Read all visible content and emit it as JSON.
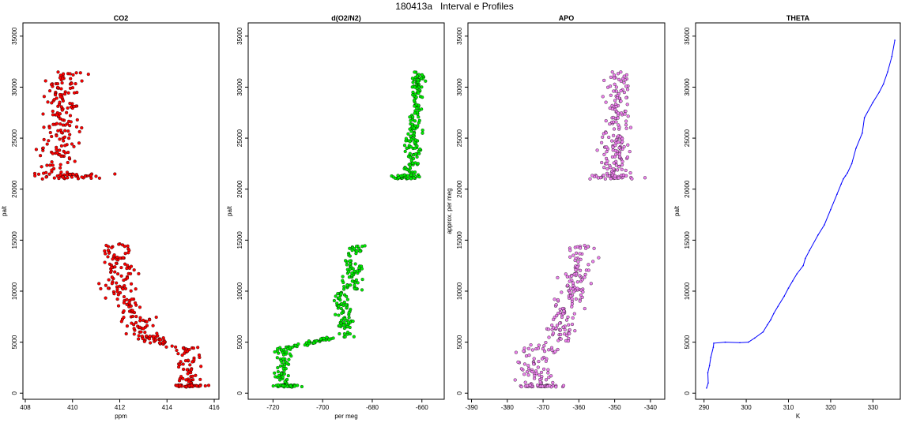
{
  "title": "180413a   Interval e Profiles",
  "chart_data": [
    {
      "type": "scatter",
      "title": "CO2",
      "xlabel": "ppm",
      "ylabel": "palt",
      "xlim": [
        407.9,
        416.2
      ],
      "ylim": [
        -600,
        36300
      ],
      "xticks": [
        408,
        410,
        412,
        414,
        416
      ],
      "yticks": [
        0,
        5000,
        10000,
        15000,
        20000,
        25000,
        30000,
        35000
      ],
      "color": "#ff0000",
      "series": [
        {
          "segments": [
            {
              "y0": 21200,
              "y1": 31500,
              "x0": 409.2,
              "x1": 409.8,
              "spread": 0.8
            },
            {
              "y0": 21000,
              "y1": 21500,
              "x0": 410.0,
              "x1": 410.2,
              "spread": 1.6
            },
            {
              "y0": 10500,
              "y1": 14700,
              "x0": 412.0,
              "x1": 411.9,
              "spread": 0.8
            },
            {
              "y0": 5800,
              "y1": 10500,
              "x0": 413.0,
              "x1": 412.0,
              "spread": 0.7
            },
            {
              "y0": 4500,
              "y1": 5800,
              "x0": 414.1,
              "x1": 413.0,
              "spread": 0.6
            },
            {
              "y0": 1000,
              "y1": 4500,
              "x0": 414.9,
              "x1": 414.9,
              "spread": 0.5
            },
            {
              "y0": 600,
              "y1": 800,
              "x0": 414.7,
              "x1": 414.9,
              "spread": 0.8
            }
          ]
        }
      ]
    },
    {
      "type": "scatter",
      "title": "d(O2/N2)",
      "xlabel": "per meg",
      "ylabel": "palt",
      "xlim": [
        -730,
        -651
      ],
      "ylim": [
        -600,
        36300
      ],
      "xticks": [
        -720,
        -700,
        -680,
        -660
      ],
      "yticks": [
        0,
        5000,
        10000,
        15000,
        20000,
        25000,
        30000,
        35000
      ],
      "color": "#00ee00",
      "series": [
        {
          "segments": [
            {
              "y0": 21500,
              "y1": 31500,
              "x0": -665,
              "x1": -661,
              "spread": 3
            },
            {
              "y0": 21000,
              "y1": 21400,
              "x0": -668,
              "x1": -666,
              "spread": 5
            },
            {
              "y0": 10000,
              "y1": 14500,
              "x0": -689,
              "x1": -686,
              "spread": 4
            },
            {
              "y0": 5500,
              "y1": 10000,
              "x0": -690,
              "x1": -693,
              "spread": 3
            },
            {
              "y0": 4500,
              "y1": 5500,
              "x0": -712,
              "x1": -695,
              "spread": 4
            },
            {
              "y0": 800,
              "y1": 4500,
              "x0": -716,
              "x1": -716,
              "spread": 4
            },
            {
              "y0": 600,
              "y1": 800,
              "x0": -714,
              "x1": -714,
              "spread": 6
            }
          ]
        }
      ]
    },
    {
      "type": "scatter",
      "title": "APO",
      "xlabel": "",
      "ylabel": "approx. per meg",
      "xlim": [
        -391,
        -336
      ],
      "ylim": [
        -600,
        36300
      ],
      "xticks": [
        -390,
        -380,
        -370,
        -360,
        -350,
        -340
      ],
      "yticks": [
        0,
        5000,
        10000,
        15000,
        20000,
        25000,
        30000,
        35000
      ],
      "color": "#ee82ee",
      "series": [
        {
          "segments": [
            {
              "y0": 21500,
              "y1": 31500,
              "x0": -350,
              "x1": -349,
              "spread": 4
            },
            {
              "y0": 21000,
              "y1": 21400,
              "x0": -350,
              "x1": -350,
              "spread": 6
            },
            {
              "y0": 10000,
              "y1": 14500,
              "x0": -362,
              "x1": -359,
              "spread": 4
            },
            {
              "y0": 5000,
              "y1": 10000,
              "x0": -365,
              "x1": -362,
              "spread": 4
            },
            {
              "y0": 800,
              "y1": 5000,
              "x0": -373,
              "x1": -370,
              "spread": 6
            },
            {
              "y0": 600,
              "y1": 800,
              "x0": -371,
              "x1": -371,
              "spread": 7
            }
          ]
        }
      ]
    },
    {
      "type": "line",
      "title": "THETA",
      "xlabel": "K",
      "ylabel": "palt",
      "xlim": [
        288,
        336.5
      ],
      "ylim": [
        -600,
        36300
      ],
      "xticks": [
        290,
        300,
        310,
        320,
        330
      ],
      "yticks": [
        0,
        5000,
        10000,
        15000,
        20000,
        25000,
        30000,
        35000
      ],
      "color": "#0000ff",
      "series": [
        {
          "x": [
            290.6,
            291.0,
            290.9,
            291.3,
            291.6,
            292.2,
            292.3,
            295.0,
            298.5,
            300.5,
            302.0,
            304.0,
            305.0,
            305.8,
            306.5,
            307.5,
            309.0,
            310.0,
            311.0,
            312.0,
            313.5,
            314.0,
            315.0,
            317.0,
            318.5,
            320.0,
            321.5,
            322.5,
            323.0,
            323.5,
            324.0,
            325.0,
            326.0,
            327.5,
            328.0,
            330.0,
            331.5,
            332.5,
            333.5,
            334.5,
            335.2
          ],
          "y": [
            500,
            1000,
            2000,
            2700,
            3500,
            4500,
            4900,
            5000,
            4950,
            5000,
            5400,
            6000,
            6700,
            7200,
            7800,
            8500,
            9500,
            10300,
            11000,
            11700,
            12500,
            13200,
            14000,
            15500,
            16500,
            18000,
            19500,
            20500,
            21000,
            21300,
            21600,
            22500,
            24000,
            25500,
            27000,
            28500,
            29500,
            30300,
            31500,
            33000,
            34600
          ]
        }
      ]
    }
  ]
}
